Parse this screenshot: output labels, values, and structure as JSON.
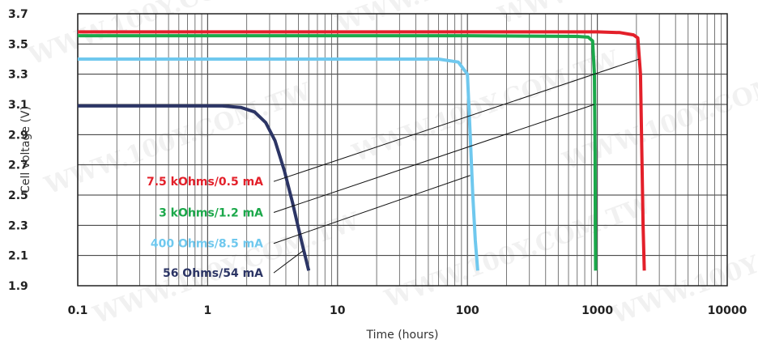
{
  "chart_data": {
    "type": "line",
    "title": "",
    "xlabel": "Time (hours)",
    "ylabel": "Cell voltage (V)",
    "x_scale": "log",
    "xlim": [
      0.1,
      10000
    ],
    "ylim": [
      1.9,
      3.7
    ],
    "x_ticks": [
      0.1,
      1,
      10,
      100,
      1000,
      10000
    ],
    "x_tick_labels": [
      "0.1",
      "1",
      "10",
      "100",
      "1000",
      "10000"
    ],
    "y_ticks": [
      1.9,
      2.1,
      2.3,
      2.5,
      2.7,
      2.9,
      3.1,
      3.3,
      3.5,
      3.7
    ],
    "y_tick_labels": [
      "1.9",
      "2.1",
      "2.3",
      "2.5",
      "2.7",
      "2.9",
      "3.1",
      "3.3",
      "3.5",
      "3.7"
    ],
    "grid": true,
    "legend_style": "labels with leader lines, left-center",
    "series": [
      {
        "name": "7.5 kOhms/0.5 mA",
        "color": "#e3202a",
        "x": [
          0.1,
          1,
          10,
          100,
          1000,
          1500,
          1900,
          2050,
          2150,
          2200,
          2250,
          2300
        ],
        "y": [
          3.58,
          3.58,
          3.58,
          3.58,
          3.58,
          3.575,
          3.56,
          3.54,
          3.3,
          2.8,
          2.3,
          2.0
        ]
      },
      {
        "name": "3 kOhms/1.2 mA",
        "color": "#1ba84a",
        "x": [
          0.1,
          1,
          10,
          100,
          700,
          850,
          920,
          950,
          960,
          965,
          970
        ],
        "y": [
          3.555,
          3.555,
          3.555,
          3.555,
          3.55,
          3.545,
          3.52,
          3.3,
          2.8,
          2.3,
          2.0
        ]
      },
      {
        "name": "400 Ohms/8.5 mA",
        "color": "#6fc8ee",
        "x": [
          0.1,
          1,
          10,
          60,
          85,
          100,
          105,
          110,
          115,
          120
        ],
        "y": [
          3.4,
          3.4,
          3.4,
          3.4,
          3.38,
          3.3,
          2.9,
          2.5,
          2.2,
          2.0
        ]
      },
      {
        "name": "56 Ohms/54 mA",
        "color": "#2c3565",
        "x": [
          0.1,
          0.5,
          1.3,
          1.8,
          2.3,
          2.8,
          3.3,
          3.9,
          4.5,
          5.2,
          6.0
        ],
        "y": [
          3.09,
          3.09,
          3.09,
          3.08,
          3.05,
          2.98,
          2.86,
          2.66,
          2.45,
          2.22,
          2.0
        ]
      }
    ],
    "watermark": "WWW.100Y.COM.TW"
  }
}
